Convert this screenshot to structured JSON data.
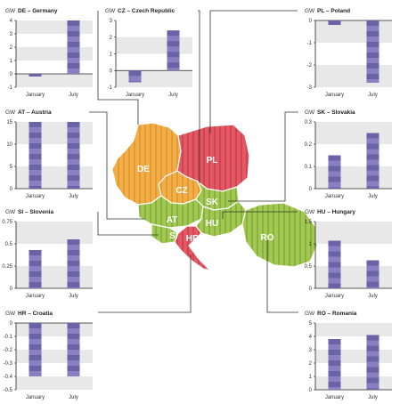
{
  "unit_label": "GW",
  "colors": {
    "bar": "#8a7fc0",
    "bar_stripe": "#6c62a8",
    "band": "#e8e8e8",
    "connector": "#333333",
    "map_orange": "#f0a53c",
    "map_red": "#e0505a",
    "map_green": "#98c248"
  },
  "map_labels": [
    "DE",
    "PL",
    "CZ",
    "SK",
    "AT",
    "HU",
    "SI",
    "HR",
    "RO"
  ],
  "chart_data": [
    {
      "id": "de",
      "type": "bar",
      "title": "DE – Germany",
      "categories": [
        "January",
        "July"
      ],
      "values": [
        -0.2,
        4.0
      ],
      "ylim": [
        -1,
        4
      ],
      "yticks": [
        -1,
        0,
        1,
        2,
        3,
        4
      ]
    },
    {
      "id": "cz",
      "type": "bar",
      "title": "CZ – Czech Republic",
      "categories": [
        "January",
        "July"
      ],
      "values": [
        -0.7,
        2.4
      ],
      "ylim": [
        -1,
        3
      ],
      "yticks": [
        -1,
        0,
        1,
        2,
        3
      ]
    },
    {
      "id": "pl",
      "type": "bar",
      "title": "PL – Poland",
      "categories": [
        "January",
        "July"
      ],
      "values": [
        -0.2,
        -2.8
      ],
      "ylim": [
        -3,
        0
      ],
      "yticks": [
        -3,
        -2,
        -1,
        0
      ]
    },
    {
      "id": "at",
      "type": "bar",
      "title": "AT – Austria",
      "categories": [
        "January",
        "July"
      ],
      "values": [
        15,
        15
      ],
      "ylim": [
        0,
        15
      ],
      "yticks": [
        0,
        5,
        10,
        15
      ]
    },
    {
      "id": "sk",
      "type": "bar",
      "title": "SK – Slovakia",
      "categories": [
        "January",
        "July"
      ],
      "values": [
        0.15,
        0.25
      ],
      "ylim": [
        0,
        0.3
      ],
      "yticks": [
        0,
        0.1,
        0.2,
        0.3
      ]
    },
    {
      "id": "si",
      "type": "bar",
      "title": "SI – Slovenia",
      "categories": [
        "January",
        "July"
      ],
      "values": [
        0.43,
        0.55
      ],
      "ylim": [
        0,
        0.75
      ],
      "yticks": [
        0,
        0.25,
        0.5,
        0.75
      ]
    },
    {
      "id": "hu",
      "type": "bar",
      "title": "HU – Hungary",
      "categories": [
        "January",
        "July"
      ],
      "values": [
        1.07,
        0.63
      ],
      "ylim": [
        0,
        1.5
      ],
      "yticks": [
        0,
        0.5,
        1,
        1.5
      ]
    },
    {
      "id": "hr",
      "type": "bar",
      "title": "HR – Croatia",
      "categories": [
        "January",
        "July"
      ],
      "values": [
        -0.4,
        -0.4
      ],
      "ylim": [
        -0.5,
        0
      ],
      "yticks": [
        -0.5,
        -0.4,
        -0.3,
        -0.2,
        -0.1,
        0
      ]
    },
    {
      "id": "ro",
      "type": "bar",
      "title": "RO – Romania",
      "categories": [
        "January",
        "July"
      ],
      "values": [
        3.8,
        4.1
      ],
      "ylim": [
        0,
        5
      ],
      "yticks": [
        0,
        1,
        2,
        3,
        4,
        5
      ]
    }
  ]
}
